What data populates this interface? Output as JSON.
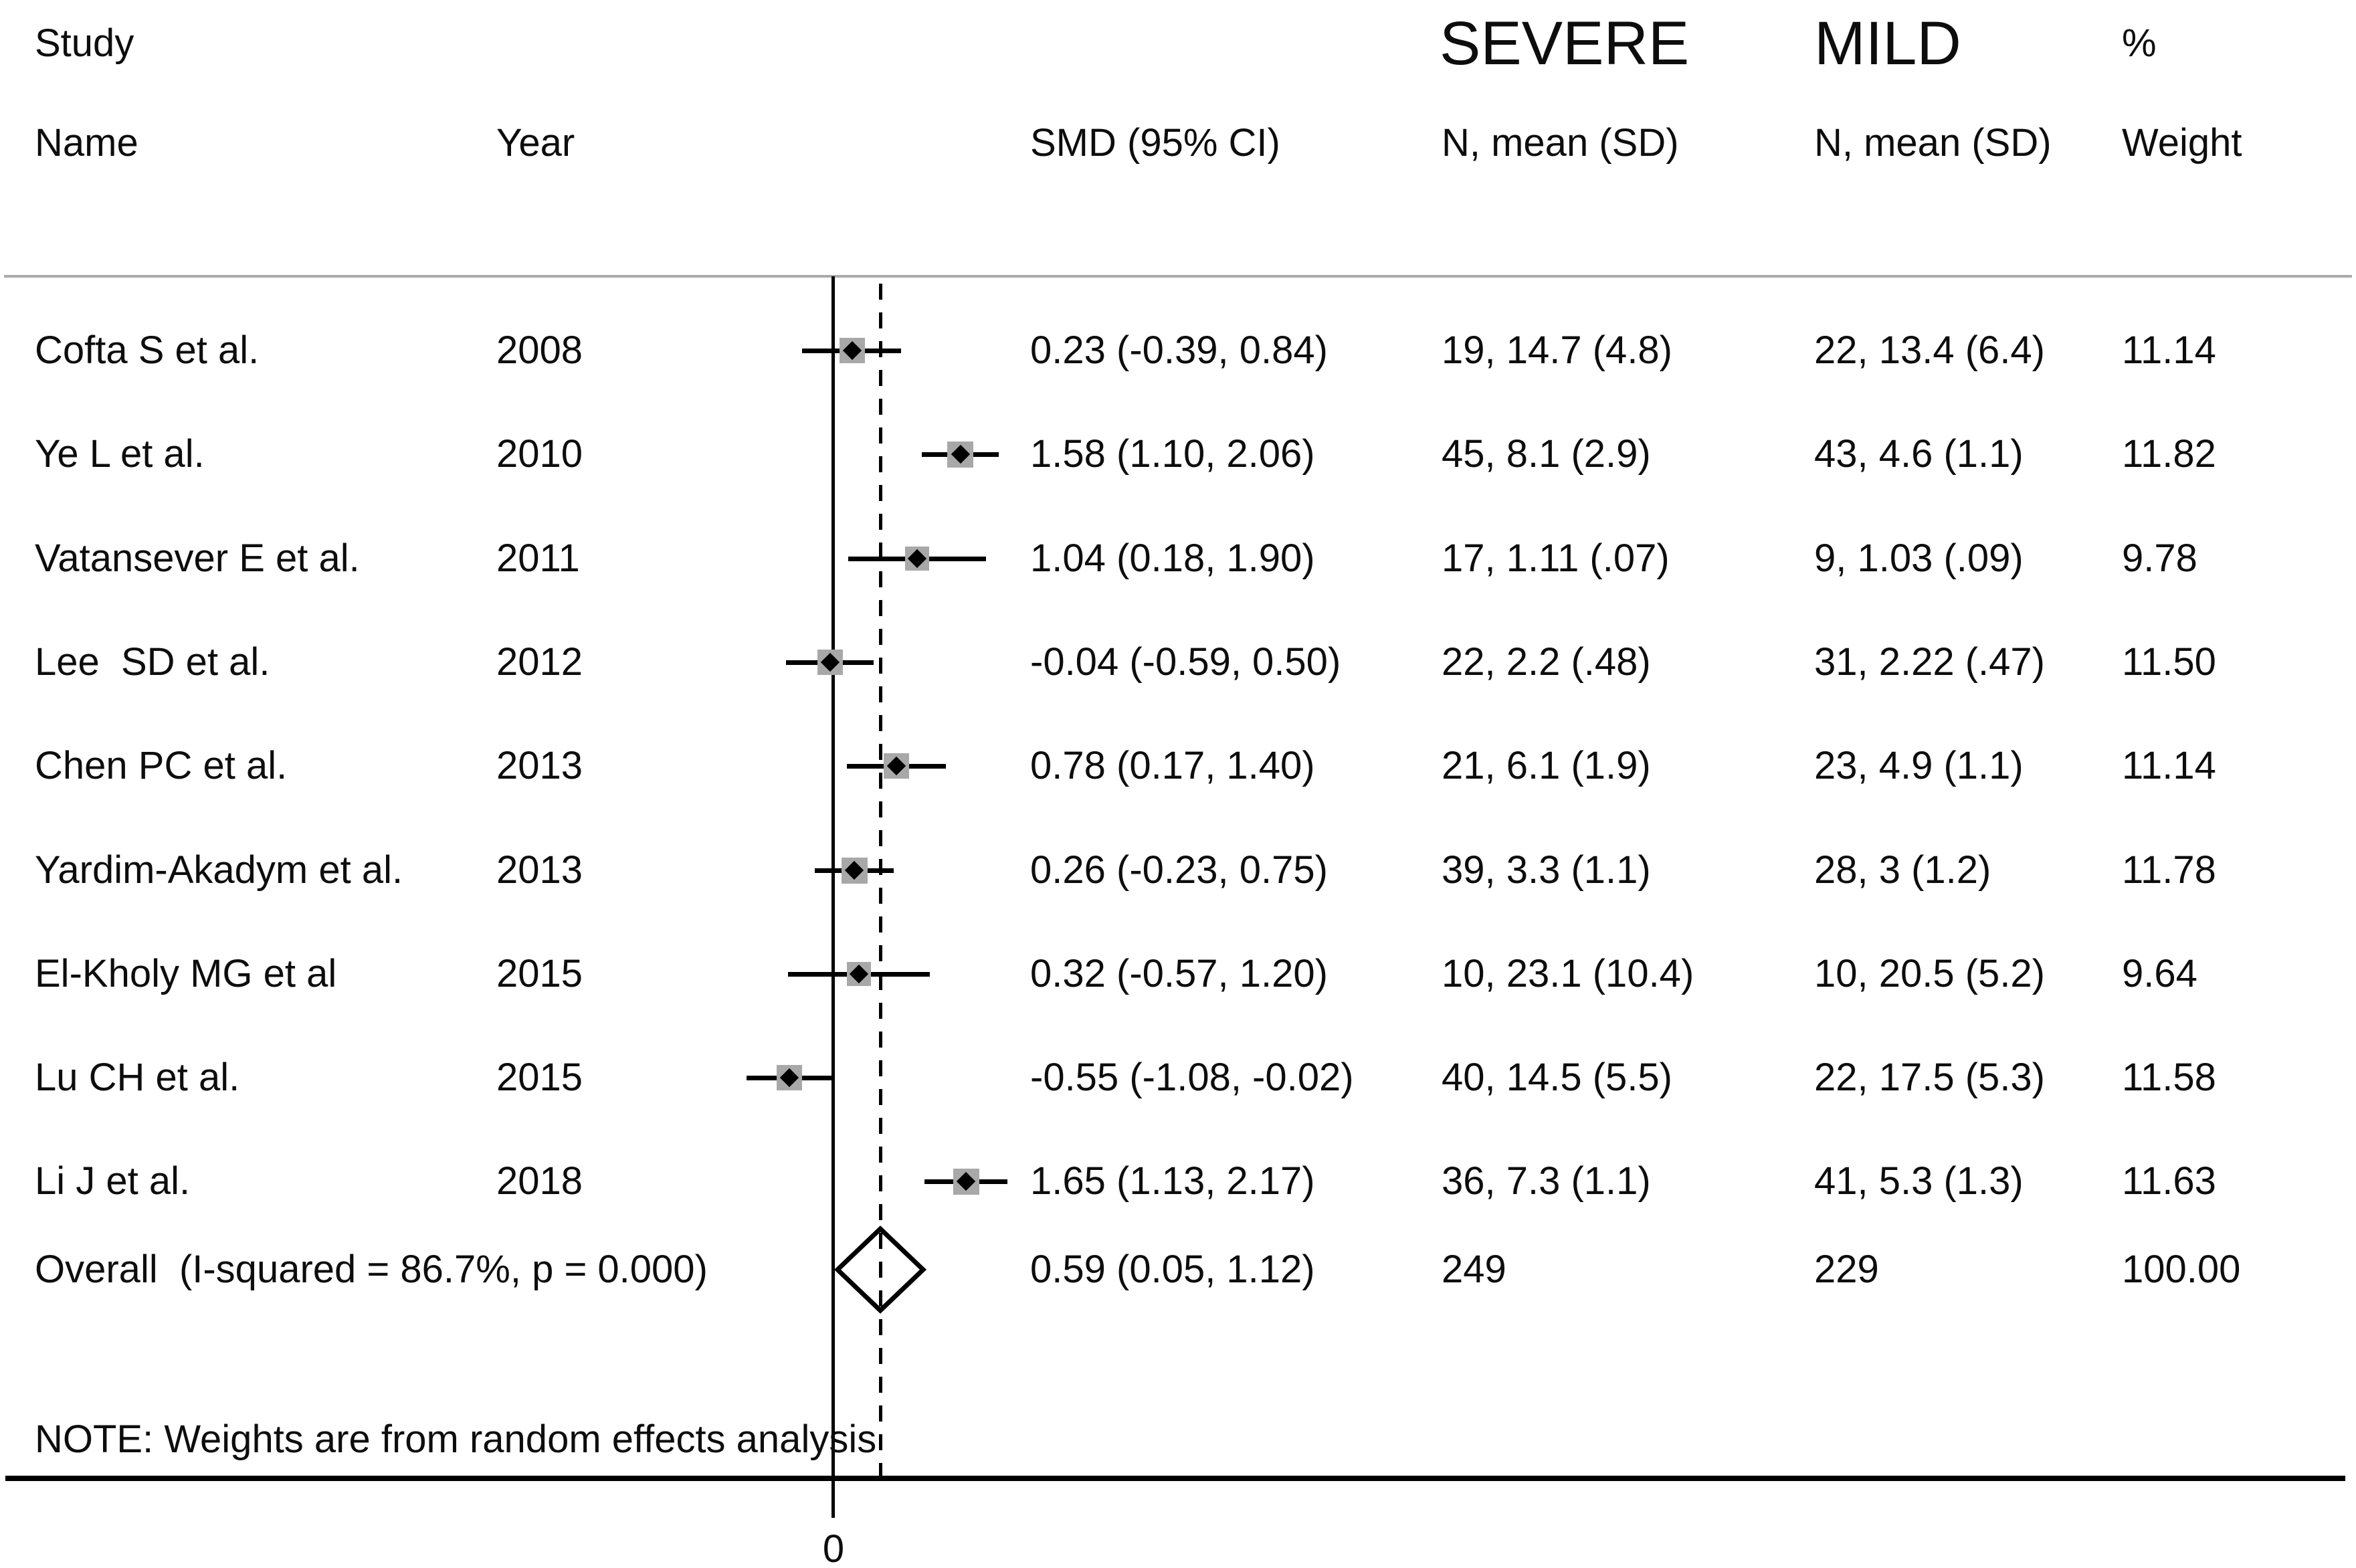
{
  "header": {
    "study": "Study",
    "name": "Name",
    "year": "Year",
    "smd": "SMD (95% CI)",
    "severe": "SEVERE",
    "severe_sub": "N, mean (SD)",
    "mild": "MILD",
    "mild_sub": "N, mean (SD)",
    "pct": "%",
    "weight": "Weight"
  },
  "note": "NOTE: Weights are from random effects analysis",
  "colors": {
    "text": "#0d0d0d",
    "separator": "#ababab",
    "line": "#000000",
    "weight_box": "#a8a8a8"
  },
  "chart_data": {
    "type": "forest",
    "effect_measure": "SMD",
    "x_axis": {
      "tick_label": "0",
      "tick_value": 0,
      "zero_line_value": 0,
      "overall_dashed_line_value": 0.59,
      "approx_range": [
        -2,
        2
      ],
      "grid": false
    },
    "columns": [
      "Study Name",
      "Year",
      "SMD (95% CI)",
      "SEVERE N, mean (SD)",
      "MILD N, mean (SD)",
      "% Weight"
    ],
    "studies": [
      {
        "name": "Cofta S et al.",
        "year": "2008",
        "smd": 0.23,
        "ci_low": -0.39,
        "ci_high": 0.84,
        "smd_text": "0.23 (-0.39, 0.84)",
        "severe": "19, 14.7 (4.8)",
        "mild": "22, 13.4 (6.4)",
        "weight": 11.14,
        "weight_text": "11.14"
      },
      {
        "name": "Ye L et al.",
        "year": "2010",
        "smd": 1.58,
        "ci_low": 1.1,
        "ci_high": 2.06,
        "smd_text": "1.58 (1.10, 2.06)",
        "severe": "45, 8.1 (2.9)",
        "mild": "43, 4.6 (1.1)",
        "weight": 11.82,
        "weight_text": "11.82"
      },
      {
        "name": "Vatansever E et al.",
        "year": "2011",
        "smd": 1.04,
        "ci_low": 0.18,
        "ci_high": 1.9,
        "smd_text": "1.04 (0.18, 1.90)",
        "severe": "17, 1.11 (.07)",
        "mild": "9, 1.03 (.09)",
        "weight": 9.78,
        "weight_text": "9.78"
      },
      {
        "name": "Lee  SD et al.",
        "year": "2012",
        "smd": -0.04,
        "ci_low": -0.59,
        "ci_high": 0.5,
        "smd_text": "-0.04 (-0.59, 0.50)",
        "severe": "22, 2.2 (.48)",
        "mild": "31, 2.22 (.47)",
        "weight": 11.5,
        "weight_text": "11.50"
      },
      {
        "name": "Chen PC et al.",
        "year": "2013",
        "smd": 0.78,
        "ci_low": 0.17,
        "ci_high": 1.4,
        "smd_text": "0.78 (0.17, 1.40)",
        "severe": "21, 6.1 (1.9)",
        "mild": "23, 4.9 (1.1)",
        "weight": 11.14,
        "weight_text": "11.14"
      },
      {
        "name": "Yardim-Akadym et al.",
        "year": "2013",
        "smd": 0.26,
        "ci_low": -0.23,
        "ci_high": 0.75,
        "smd_text": "0.26 (-0.23, 0.75)",
        "severe": "39, 3.3 (1.1)",
        "mild": "28, 3 (1.2)",
        "weight": 11.78,
        "weight_text": "11.78"
      },
      {
        "name": "El-Kholy MG et al",
        "year": "2015",
        "smd": 0.32,
        "ci_low": -0.57,
        "ci_high": 1.2,
        "smd_text": "0.32 (-0.57, 1.20)",
        "severe": "10, 23.1 (10.4)",
        "mild": "10, 20.5 (5.2)",
        "weight": 9.64,
        "weight_text": "9.64"
      },
      {
        "name": "Lu CH et al.",
        "year": "2015",
        "smd": -0.55,
        "ci_low": -1.08,
        "ci_high": -0.02,
        "smd_text": "-0.55 (-1.08, -0.02)",
        "severe": "40, 14.5 (5.5)",
        "mild": "22, 17.5 (5.3)",
        "weight": 11.58,
        "weight_text": "11.58"
      },
      {
        "name": "Li J et al.",
        "year": "2018",
        "smd": 1.65,
        "ci_low": 1.13,
        "ci_high": 2.17,
        "smd_text": "1.65 (1.13, 2.17)",
        "severe": "36, 7.3 (1.1)",
        "mild": "41, 5.3 (1.3)",
        "weight": 11.63,
        "weight_text": "11.63"
      }
    ],
    "overall": {
      "label": "Overall  (I-squared = 86.7%, p = 0.000)",
      "smd": 0.59,
      "ci_low": 0.05,
      "ci_high": 1.12,
      "smd_text": "0.59 (0.05, 1.12)",
      "severe": "249",
      "mild": "229",
      "weight": 100.0,
      "weight_text": "100.00"
    },
    "note": "NOTE: Weights are from random effects analysis",
    "legend_position": "none",
    "title": ""
  }
}
